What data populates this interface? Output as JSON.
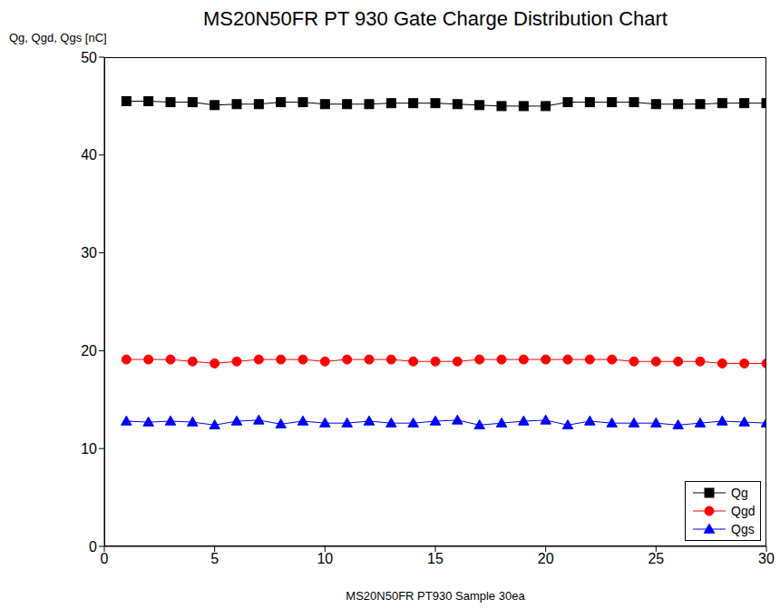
{
  "chart_data": {
    "type": "line",
    "title": "MS20N50FR PT 930 Gate Charge Distribution Chart",
    "x_label": "MS20N50FR PT930 Sample 30ea",
    "y_label": "Qg, Qgd, Qgs [nC]",
    "x": [
      1,
      2,
      3,
      4,
      5,
      6,
      7,
      8,
      9,
      10,
      11,
      12,
      13,
      14,
      15,
      16,
      17,
      18,
      19,
      20,
      21,
      22,
      23,
      24,
      25,
      26,
      27,
      28,
      29,
      30
    ],
    "series": [
      {
        "name": "Qg",
        "color": "#000000",
        "marker": "square",
        "values": [
          45.5,
          45.5,
          45.4,
          45.4,
          45.1,
          45.2,
          45.2,
          45.4,
          45.4,
          45.2,
          45.2,
          45.2,
          45.3,
          45.3,
          45.3,
          45.2,
          45.1,
          45.0,
          45.0,
          45.0,
          45.4,
          45.4,
          45.4,
          45.4,
          45.2,
          45.2,
          45.2,
          45.3,
          45.3,
          45.3
        ]
      },
      {
        "name": "Qgd",
        "color": "#ff0000",
        "marker": "circle",
        "values": [
          19.1,
          19.1,
          19.1,
          18.9,
          18.7,
          18.9,
          19.1,
          19.1,
          19.1,
          18.9,
          19.1,
          19.1,
          19.1,
          18.9,
          18.9,
          18.9,
          19.1,
          19.1,
          19.1,
          19.1,
          19.1,
          19.1,
          19.1,
          18.9,
          18.9,
          18.9,
          18.9,
          18.7,
          18.7,
          18.7
        ]
      },
      {
        "name": "Qgs",
        "color": "#0000ff",
        "marker": "triangle",
        "values": [
          12.8,
          12.7,
          12.8,
          12.7,
          12.4,
          12.8,
          12.9,
          12.5,
          12.8,
          12.6,
          12.6,
          12.8,
          12.6,
          12.6,
          12.8,
          12.9,
          12.4,
          12.6,
          12.8,
          12.9,
          12.4,
          12.8,
          12.6,
          12.6,
          12.6,
          12.4,
          12.6,
          12.8,
          12.7,
          12.6
        ]
      }
    ],
    "xlim": [
      0,
      30
    ],
    "ylim": [
      0,
      50
    ],
    "xticks": [
      0,
      5,
      10,
      15,
      20,
      25,
      30
    ],
    "yticks": [
      0,
      10,
      20,
      30,
      40,
      50
    ],
    "grid": false,
    "legend": "lower right"
  }
}
